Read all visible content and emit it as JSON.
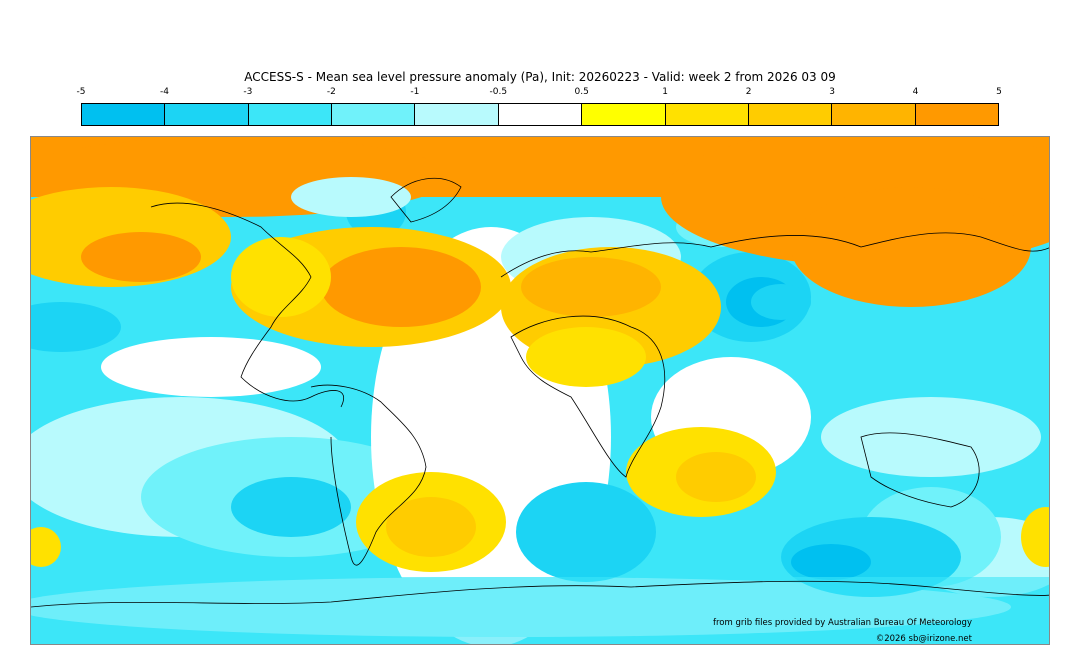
{
  "title": "ACCESS-S - Mean sea level pressure anomaly (Pa), Init: 20260223 - Valid: week 2 from 2026 03 09",
  "colorbar": {
    "ticks": [
      "-5",
      "-4",
      "-3",
      "-2",
      "-1",
      "-0.5",
      "0.5",
      "1",
      "2",
      "3",
      "4",
      "5"
    ],
    "colors": [
      "#00c0f0",
      "#1cd4f4",
      "#3ce6f8",
      "#70f2fa",
      "#b8fafd",
      "#ffffff",
      "#ffff00",
      "#ffe100",
      "#ffcc00",
      "#ffb400",
      "#ff9900"
    ]
  },
  "credits": {
    "source": "from grib files provided by Australian Bureau Of Meteorology",
    "copyright": "©2026 sb@irizone.net"
  }
}
